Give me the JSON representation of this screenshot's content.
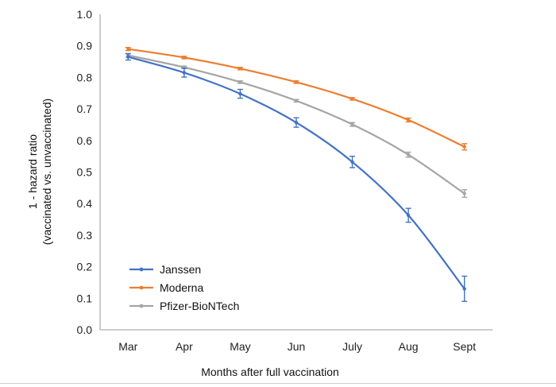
{
  "chart_data": {
    "type": "line",
    "title": "",
    "xlabel": "Months after full vaccination",
    "ylabel_line1": "1 - hazard ratio",
    "ylabel_line2": "(vaccinated vs. unvaccinated)",
    "categories": [
      "Mar",
      "Apr",
      "May",
      "Jun",
      "July",
      "Aug",
      "Sept"
    ],
    "ylim": [
      0,
      1.0
    ],
    "yticks": [
      "0.0",
      "0.1",
      "0.2",
      "0.3",
      "0.4",
      "0.5",
      "0.6",
      "0.7",
      "0.8",
      "0.9",
      "1.0"
    ],
    "grid": false,
    "legend_position": "bottom-left",
    "series": [
      {
        "name": "Janssen",
        "color": "#4472C4",
        "values": [
          0.865,
          0.815,
          0.748,
          0.657,
          0.532,
          0.363,
          0.13
        ],
        "err": [
          0.01,
          0.014,
          0.014,
          0.015,
          0.018,
          0.022,
          0.04
        ]
      },
      {
        "name": "Moderna",
        "color": "#ED7D31",
        "values": [
          0.89,
          0.863,
          0.828,
          0.785,
          0.732,
          0.665,
          0.58
        ],
        "err": [
          0.005,
          0.004,
          0.004,
          0.004,
          0.004,
          0.006,
          0.01
        ]
      },
      {
        "name": "Pfizer-BioNTech",
        "color": "#A5A5A5",
        "values": [
          0.87,
          0.832,
          0.785,
          0.726,
          0.651,
          0.555,
          0.432
        ],
        "err": [
          0.006,
          0.004,
          0.004,
          0.004,
          0.006,
          0.008,
          0.012
        ]
      }
    ]
  }
}
